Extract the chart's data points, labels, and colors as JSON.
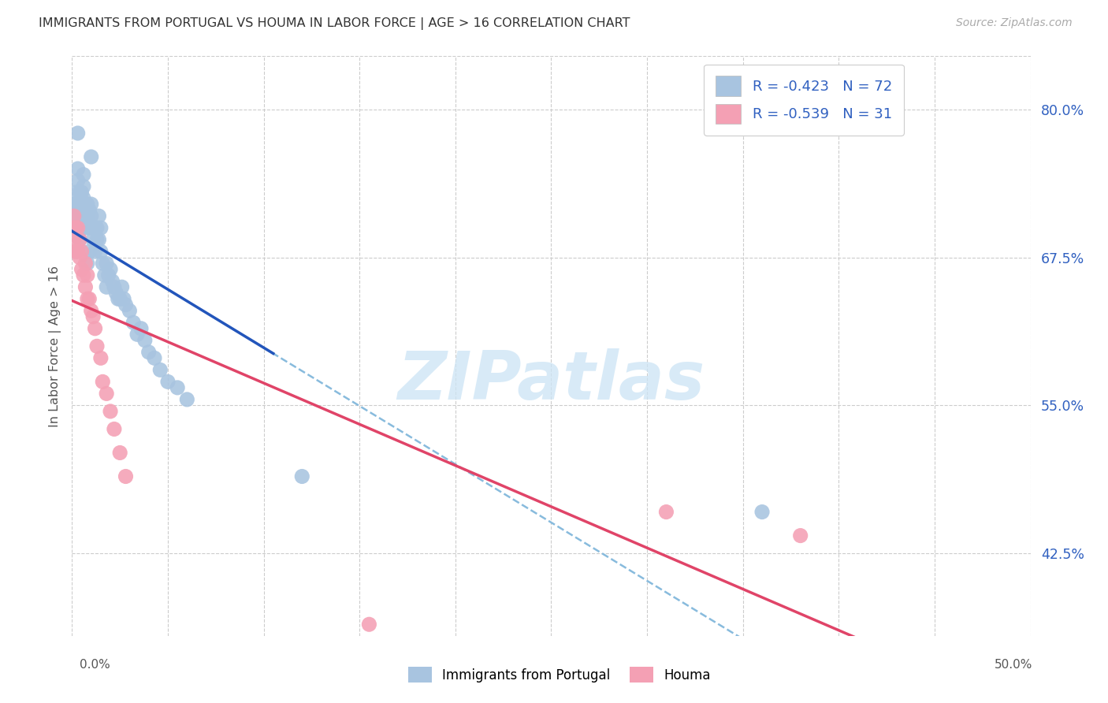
{
  "title": "IMMIGRANTS FROM PORTUGAL VS HOUMA IN LABOR FORCE | AGE > 16 CORRELATION CHART",
  "source_text": "Source: ZipAtlas.com",
  "ylabel": "In Labor Force | Age > 16",
  "ytick_values": [
    0.425,
    0.55,
    0.675,
    0.8
  ],
  "ytick_labels": [
    "42.5%",
    "55.0%",
    "67.5%",
    "80.0%"
  ],
  "xlim": [
    0.0,
    0.5
  ],
  "ylim": [
    0.355,
    0.845
  ],
  "blue_R": -0.423,
  "blue_N": 72,
  "pink_R": -0.539,
  "pink_N": 31,
  "legend_label1": "Immigrants from Portugal",
  "legend_label2": "Houma",
  "blue_scatter_x": [
    0.001,
    0.001,
    0.002,
    0.002,
    0.002,
    0.002,
    0.003,
    0.003,
    0.003,
    0.003,
    0.003,
    0.004,
    0.004,
    0.004,
    0.004,
    0.005,
    0.005,
    0.005,
    0.005,
    0.006,
    0.006,
    0.006,
    0.006,
    0.007,
    0.007,
    0.007,
    0.008,
    0.008,
    0.008,
    0.009,
    0.009,
    0.009,
    0.01,
    0.01,
    0.01,
    0.011,
    0.011,
    0.012,
    0.012,
    0.013,
    0.013,
    0.014,
    0.014,
    0.015,
    0.015,
    0.016,
    0.017,
    0.018,
    0.018,
    0.019,
    0.02,
    0.021,
    0.022,
    0.023,
    0.024,
    0.025,
    0.026,
    0.027,
    0.028,
    0.03,
    0.032,
    0.034,
    0.036,
    0.038,
    0.04,
    0.043,
    0.046,
    0.05,
    0.055,
    0.06,
    0.12,
    0.36
  ],
  "blue_scatter_y": [
    0.71,
    0.72,
    0.68,
    0.7,
    0.72,
    0.73,
    0.71,
    0.72,
    0.74,
    0.78,
    0.75,
    0.72,
    0.73,
    0.69,
    0.71,
    0.7,
    0.72,
    0.71,
    0.73,
    0.715,
    0.725,
    0.735,
    0.745,
    0.71,
    0.72,
    0.7,
    0.71,
    0.72,
    0.67,
    0.715,
    0.7,
    0.68,
    0.76,
    0.72,
    0.71,
    0.7,
    0.69,
    0.7,
    0.68,
    0.69,
    0.7,
    0.69,
    0.71,
    0.68,
    0.7,
    0.67,
    0.66,
    0.67,
    0.65,
    0.66,
    0.665,
    0.655,
    0.65,
    0.645,
    0.64,
    0.64,
    0.65,
    0.64,
    0.635,
    0.63,
    0.62,
    0.61,
    0.615,
    0.605,
    0.595,
    0.59,
    0.58,
    0.57,
    0.565,
    0.555,
    0.49,
    0.46
  ],
  "pink_scatter_x": [
    0.001,
    0.001,
    0.001,
    0.002,
    0.002,
    0.003,
    0.003,
    0.004,
    0.004,
    0.005,
    0.005,
    0.006,
    0.007,
    0.007,
    0.008,
    0.008,
    0.009,
    0.01,
    0.011,
    0.012,
    0.013,
    0.015,
    0.016,
    0.018,
    0.02,
    0.022,
    0.025,
    0.028,
    0.155,
    0.31,
    0.38
  ],
  "pink_scatter_y": [
    0.69,
    0.7,
    0.71,
    0.68,
    0.7,
    0.68,
    0.7,
    0.675,
    0.69,
    0.665,
    0.68,
    0.66,
    0.65,
    0.67,
    0.64,
    0.66,
    0.64,
    0.63,
    0.625,
    0.615,
    0.6,
    0.59,
    0.57,
    0.56,
    0.545,
    0.53,
    0.51,
    0.49,
    0.365,
    0.46,
    0.44
  ],
  "blue_color": "#a8c4e0",
  "pink_color": "#f4a0b4",
  "blue_line_color": "#2255bb",
  "pink_line_color": "#e04468",
  "dash_line_color": "#88bbdd",
  "watermark_text": "ZIPatlas",
  "watermark_color": "#cce4f5",
  "background_color": "#ffffff",
  "grid_color": "#cccccc",
  "title_color": "#333333",
  "right_axis_color": "#3060c0",
  "ylabel_color": "#555555",
  "source_color": "#aaaaaa",
  "xtick_label_color": "#555555"
}
